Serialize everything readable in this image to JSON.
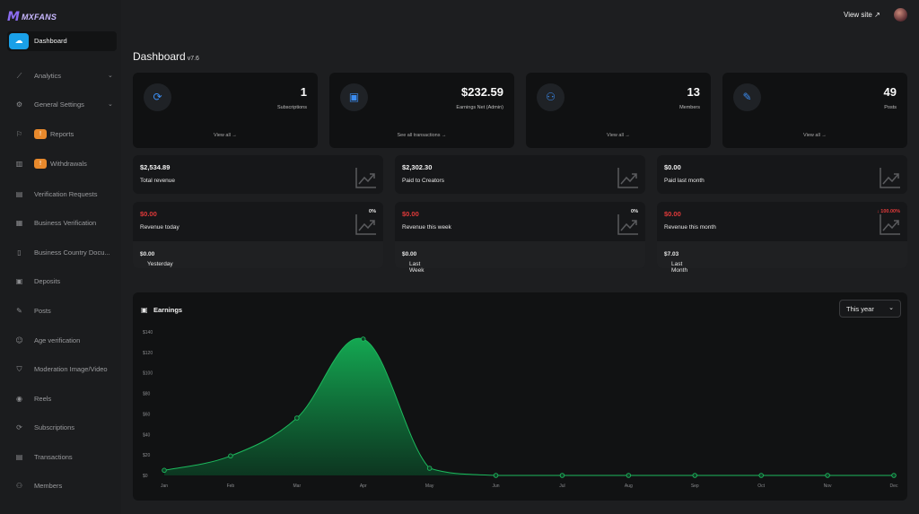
{
  "brand": {
    "logo_mark": "M",
    "name": "MXFANS"
  },
  "sidebar": {
    "active": {
      "label": "Dashboard",
      "icon": "cloud-icon"
    },
    "items": [
      {
        "label": "Analytics",
        "icon": "chart-line-icon",
        "chevron": true
      },
      {
        "label": "General Settings",
        "icon": "gear-icon",
        "chevron": true
      },
      {
        "label": "Reports",
        "icon": "flag-icon",
        "badge": "!"
      },
      {
        "label": "Withdrawals",
        "icon": "bank-icon",
        "badge": "!"
      },
      {
        "label": "Verification Requests",
        "icon": "id-card-icon"
      },
      {
        "label": "Business Verification",
        "icon": "building-icon"
      },
      {
        "label": "Business Country Docu...",
        "icon": "document-icon"
      },
      {
        "label": "Deposits",
        "icon": "cash-icon"
      },
      {
        "label": "Posts",
        "icon": "edit-icon"
      },
      {
        "label": "Age verification",
        "icon": "user-check-icon"
      },
      {
        "label": "Moderation Image/Video",
        "icon": "shield-icon"
      },
      {
        "label": "Reels",
        "icon": "play-circle-icon"
      },
      {
        "label": "Subscriptions",
        "icon": "refresh-icon"
      },
      {
        "label": "Transactions",
        "icon": "receipt-icon"
      },
      {
        "label": "Members",
        "icon": "users-icon"
      }
    ]
  },
  "topbar": {
    "view_site": "View site ↗"
  },
  "page": {
    "title": "Dashboard",
    "version": "v7.6"
  },
  "stats": [
    {
      "value": "1",
      "label": "Subscriptions",
      "link": "View all →",
      "icon": "refresh-icon"
    },
    {
      "value": "$232.59",
      "label": "Earnings Net (Admin)",
      "link": "See all transactions →",
      "icon": "cash-icon"
    },
    {
      "value": "13",
      "label": "Members",
      "link": "View all →",
      "icon": "users-icon"
    },
    {
      "value": "49",
      "label": "Posts",
      "link": "View all →",
      "icon": "edit-icon"
    }
  ],
  "revenue_totals": [
    {
      "value": "$2,534.89",
      "label": "Total revenue"
    },
    {
      "value": "$2,302.30",
      "label": "Paid to Creators"
    },
    {
      "value": "$0.00",
      "label": "Paid last month"
    }
  ],
  "revenue_periods": [
    {
      "value": "$0.00",
      "label": "Revenue today",
      "pct": "0%",
      "pct_color": "#ececec",
      "footer_label": "Yesterday",
      "footer_value": "$0.00"
    },
    {
      "value": "$0.00",
      "label": "Revenue this week",
      "pct": "0%",
      "pct_color": "#ececec",
      "footer_label": "Last Week",
      "footer_value": "$0.00"
    },
    {
      "value": "$0.00",
      "label": "Revenue this month",
      "pct": "↓ 100.00%",
      "pct_color": "#e23a3a",
      "footer_label": "Last Month",
      "footer_value": "$7.03"
    }
  ],
  "earnings": {
    "title": "Earnings",
    "period_select": "This year"
  },
  "colors": {
    "accent": "#1aa0e8",
    "badge": "#e8892c",
    "chart_green": "#12a150",
    "negative": "#e23a3a"
  },
  "chart_data": {
    "type": "area",
    "categories": [
      "Jan",
      "Feb",
      "Mar",
      "Apr",
      "May",
      "Jun",
      "Jul",
      "Aug",
      "Sep",
      "Oct",
      "Nov",
      "Dec"
    ],
    "values": [
      5,
      19,
      56,
      133,
      7,
      0,
      0,
      0,
      0,
      0,
      0,
      0
    ],
    "yticks": [
      "$0",
      "$20",
      "$40",
      "$60",
      "$80",
      "$100",
      "$120",
      "$140"
    ],
    "ylim": [
      0,
      140
    ],
    "title": "Earnings",
    "grid": false
  }
}
